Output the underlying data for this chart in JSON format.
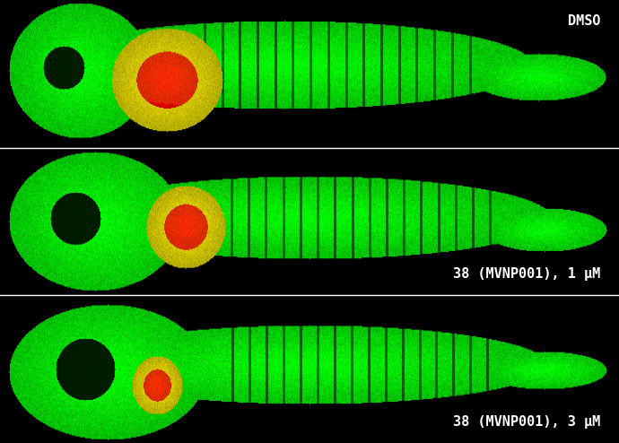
{
  "background_color": "#000000",
  "text_color": "#ffffff",
  "panel_labels": [
    "DMSO",
    "38 (MVNP001), 1 μM",
    "38 (MVNP001), 3 μM"
  ],
  "fig_width": 6.9,
  "fig_height": 4.94,
  "dpi": 100,
  "font_size": 11,
  "divider_color": "#ffffff",
  "divider_lw": 1.0
}
